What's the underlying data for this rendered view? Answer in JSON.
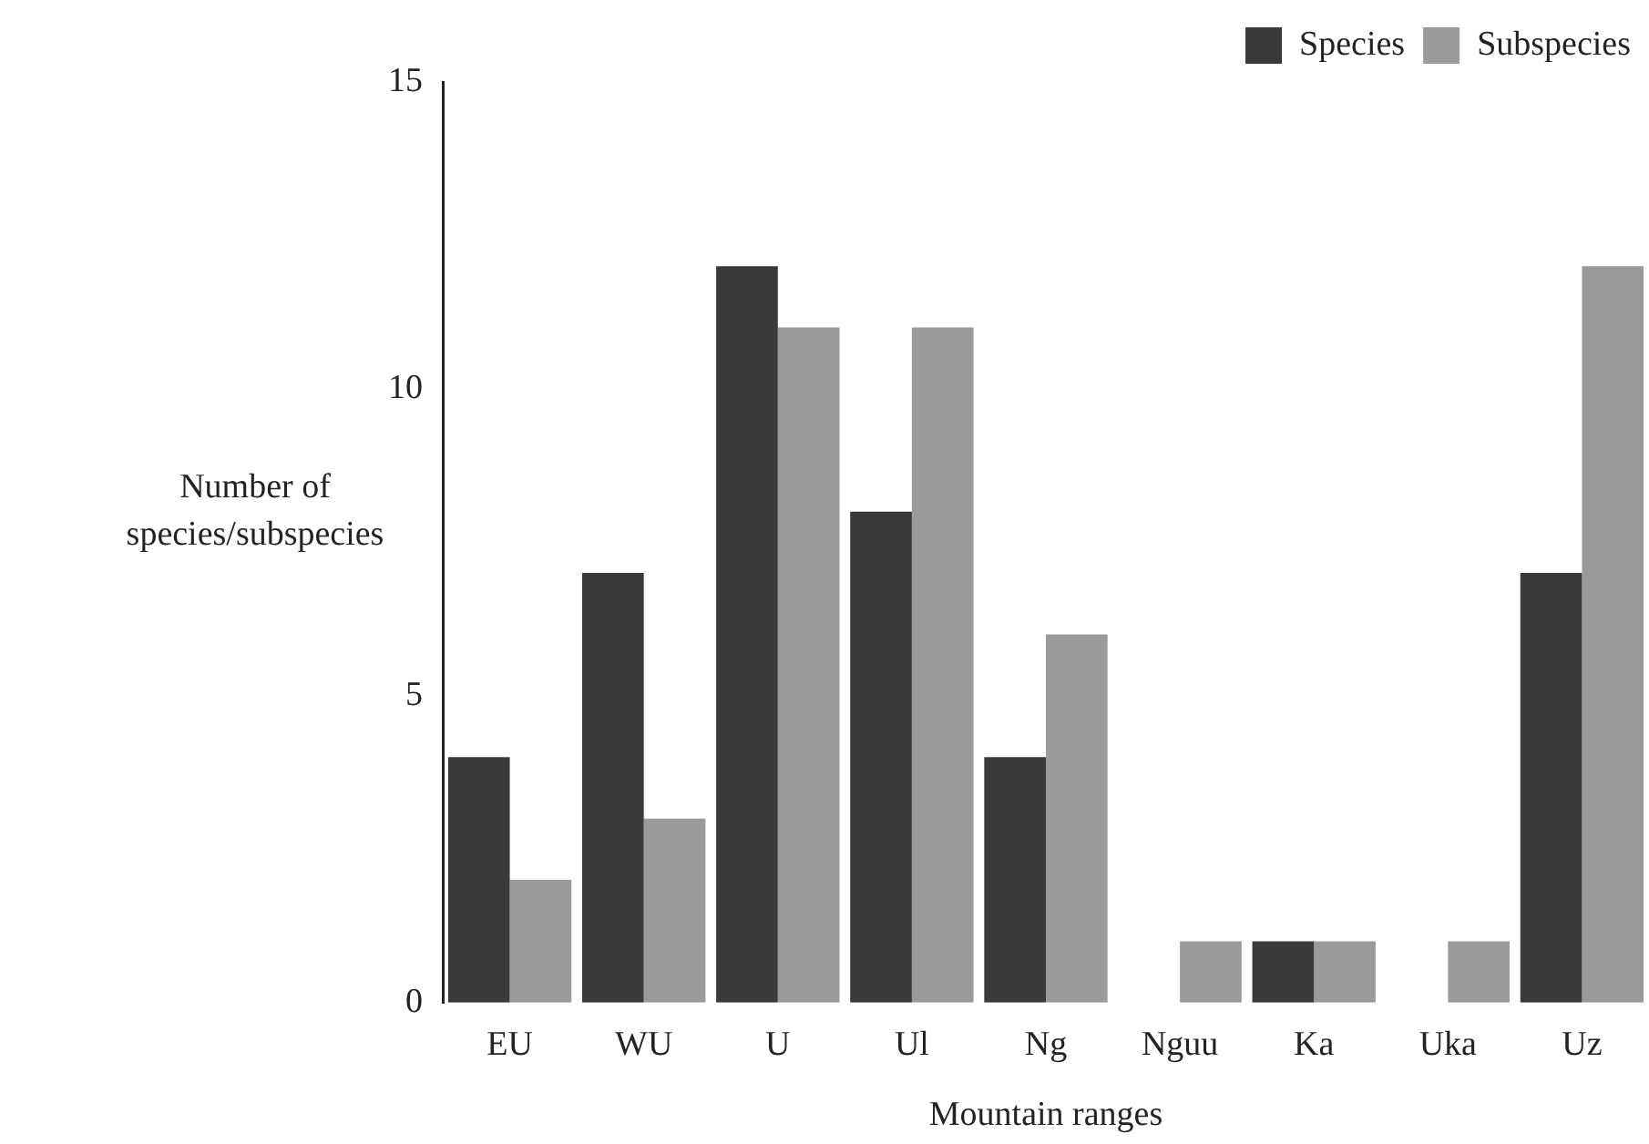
{
  "chart_data": {
    "type": "bar",
    "xlabel": "Mountain ranges",
    "ylabel": "Number of species/subspecies",
    "categories": [
      "EU",
      "WU",
      "U",
      "Ul",
      "Ng",
      "Nguu",
      "Ka",
      "Uka",
      "Uz"
    ],
    "series": [
      {
        "name": "Species",
        "color": "#3a3a3a",
        "values": [
          4,
          7,
          12,
          8,
          4,
          0,
          1,
          0,
          7
        ]
      },
      {
        "name": "Subspecies",
        "color": "#9a9a9a",
        "values": [
          2,
          3,
          11,
          11,
          6,
          1,
          1,
          1,
          12
        ]
      }
    ],
    "ylim": [
      0,
      15
    ],
    "yticks": [
      0,
      5,
      10,
      15
    ],
    "grid": false,
    "legend": "top right"
  }
}
